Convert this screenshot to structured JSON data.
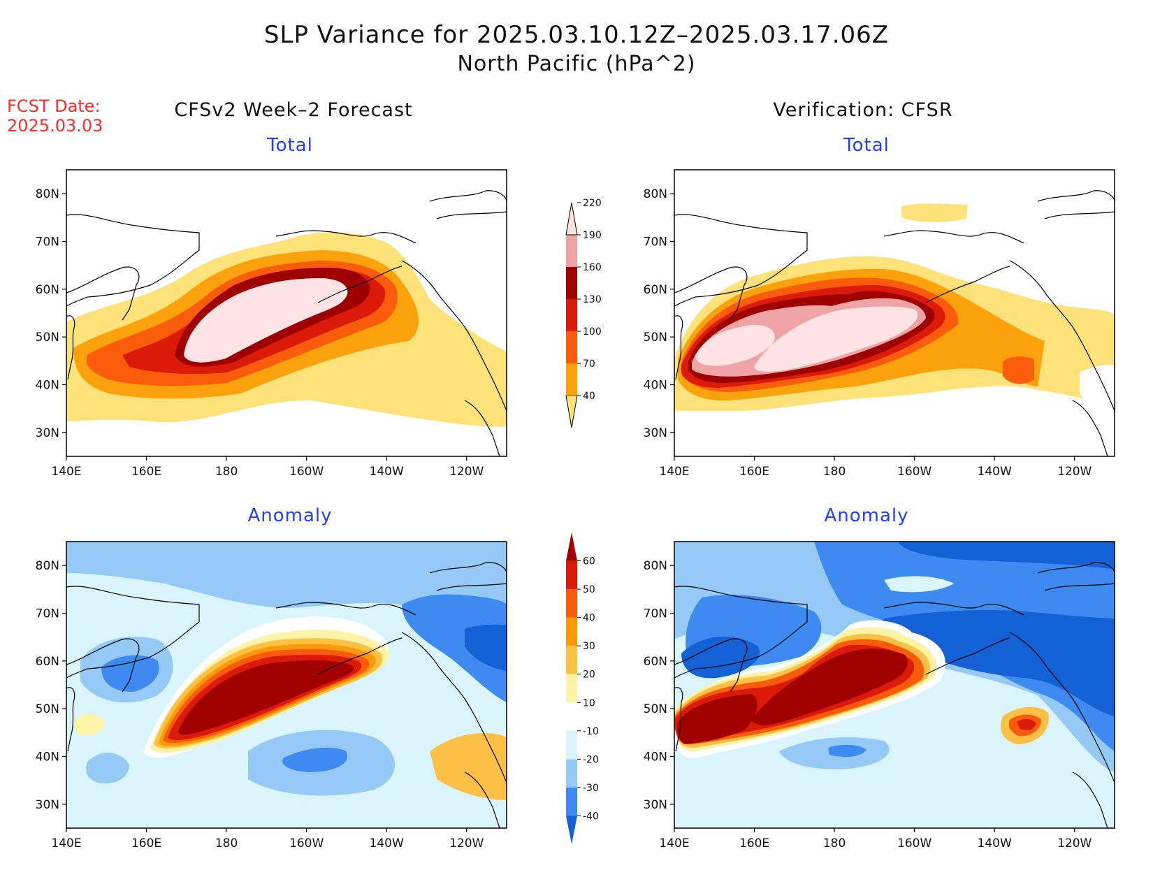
{
  "title": "SLP Variance for 2025.03.10.12Z–2025.03.17.06Z",
  "subtitle": "North Pacific (hPa^2)",
  "forecast_date": {
    "line1": "FCST Date:",
    "line2": "2025.03.03"
  },
  "columns": {
    "left": "CFSv2 Week–2 Forecast",
    "right": "Verification: CFSR"
  },
  "panels": {
    "tl": "Total",
    "tr": "Total",
    "bl": "Anomaly",
    "br": "Anomaly"
  },
  "axes": {
    "x_ticks": [
      "140E",
      "160E",
      "180",
      "160W",
      "140W",
      "120W"
    ],
    "y_ticks": [
      "80N",
      "70N",
      "60N",
      "50N",
      "40N",
      "30N"
    ]
  },
  "colorbars": {
    "total": {
      "levels": [
        "40",
        "70",
        "100",
        "130",
        "160",
        "190",
        "220"
      ],
      "colors": [
        "#fde27a",
        "#fba10b",
        "#f95c0b",
        "#dc1a0a",
        "#9e0000",
        "#f0a3a5",
        "#fde3e3"
      ]
    },
    "anomaly": {
      "levels": [
        "-40",
        "-30",
        "-20",
        "-10",
        "10",
        "20",
        "30",
        "40",
        "50",
        "60"
      ],
      "colors": [
        "#1460d5",
        "#3d8af0",
        "#96caf6",
        "#d9f5fb",
        "#ffffff",
        "#fcf3a6",
        "#fcc144",
        "#fb9a08",
        "#fa5b0a",
        "#dc1a0a",
        "#a00000"
      ]
    }
  }
}
